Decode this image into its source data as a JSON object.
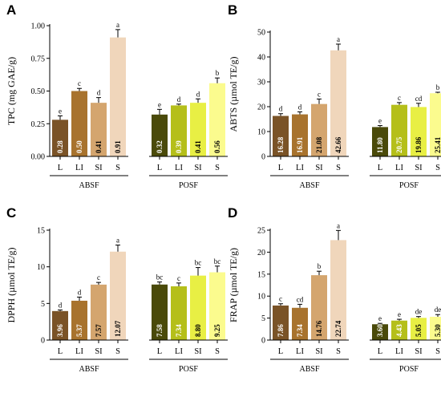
{
  "chart_data": [
    {
      "panel": "A",
      "type": "bar",
      "ylabel": "TPC (mg GAE/g)",
      "ylim": [
        0,
        1.0
      ],
      "yticks": [
        "0.00",
        "0.25",
        "0.50",
        "0.75",
        "1.00"
      ],
      "yticks_values": [
        0,
        0.25,
        0.5,
        0.75,
        1.0
      ],
      "groups": [
        {
          "name": "ABSF",
          "categories": [
            "L",
            "LI",
            "SI",
            "S"
          ],
          "values": [
            0.28,
            0.5,
            0.41,
            0.91
          ],
          "errors": [
            0.03,
            0.02,
            0.04,
            0.06
          ],
          "letters": [
            "e",
            "c",
            "d",
            "a"
          ],
          "labels": [
            "0.28",
            "0.50",
            "0.41",
            "0.91"
          ]
        },
        {
          "name": "POSF",
          "categories": [
            "L",
            "LI",
            "SI",
            "S"
          ],
          "values": [
            0.32,
            0.39,
            0.41,
            0.56
          ],
          "errors": [
            0.04,
            0.01,
            0.03,
            0.04
          ],
          "letters": [
            "e",
            "d",
            "d",
            "b"
          ],
          "labels": [
            "0.32",
            "0.39",
            "0.41",
            "0.56"
          ]
        }
      ]
    },
    {
      "panel": "B",
      "type": "bar",
      "ylabel": "ABTS (µmol TE/g)",
      "ylim": [
        0,
        50
      ],
      "yticks": [
        "0",
        "10",
        "20",
        "30",
        "40",
        "50"
      ],
      "yticks_values": [
        0,
        10,
        20,
        30,
        40,
        50
      ],
      "groups": [
        {
          "name": "ABSF",
          "categories": [
            "L",
            "LI",
            "SI",
            "S"
          ],
          "values": [
            16.28,
            16.91,
            21.08,
            42.66
          ],
          "errors": [
            0.9,
            1.0,
            2.0,
            2.5
          ],
          "letters": [
            "d",
            "d",
            "c",
            "a"
          ],
          "labels": [
            "16.28",
            "16.91",
            "21.08",
            "42.66"
          ]
        },
        {
          "name": "POSF",
          "categories": [
            "L",
            "LI",
            "SI",
            "S"
          ],
          "values": [
            11.8,
            20.75,
            19.86,
            25.41
          ],
          "errors": [
            0.6,
            0.9,
            1.5,
            0.4
          ],
          "letters": [
            "e",
            "c",
            "cd",
            "b"
          ],
          "labels": [
            "11.80",
            "20.75",
            "19.86",
            "25.41"
          ]
        }
      ]
    },
    {
      "panel": "C",
      "type": "bar",
      "ylabel": "DPPH (µmol TE/g)",
      "ylim": [
        0,
        15
      ],
      "yticks": [
        "0",
        "5",
        "10",
        "15"
      ],
      "yticks_values": [
        0,
        5,
        10,
        15
      ],
      "groups": [
        {
          "name": "ABSF",
          "categories": [
            "L",
            "LI",
            "SI",
            "S"
          ],
          "values": [
            3.96,
            5.37,
            7.57,
            12.07
          ],
          "errors": [
            0.15,
            0.5,
            0.3,
            0.9
          ],
          "letters": [
            "d",
            "d",
            "c",
            "a"
          ],
          "labels": [
            "3.96",
            "5.37",
            "7.57",
            "12.07"
          ]
        },
        {
          "name": "POSF",
          "categories": [
            "L",
            "LI",
            "SI",
            "S"
          ],
          "values": [
            7.58,
            7.34,
            8.8,
            9.25
          ],
          "errors": [
            0.35,
            0.45,
            1.1,
            0.85
          ],
          "letters": [
            "bc",
            "c",
            "bc",
            "bc"
          ],
          "labels": [
            "7.58",
            "7.34",
            "8.80",
            "9.25"
          ]
        }
      ]
    },
    {
      "panel": "D",
      "type": "bar",
      "ylabel": "FRAP (µmol TE/g)",
      "ylim": [
        0,
        25
      ],
      "yticks": [
        "0",
        "5",
        "10",
        "15",
        "20",
        "25"
      ],
      "yticks_values": [
        0,
        5,
        10,
        15,
        20,
        25
      ],
      "groups": [
        {
          "name": "ABSF",
          "categories": [
            "L",
            "LI",
            "SI",
            "S"
          ],
          "values": [
            7.86,
            7.34,
            14.76,
            22.74
          ],
          "errors": [
            0.4,
            0.8,
            0.9,
            2.2
          ],
          "letters": [
            "c",
            "cd",
            "b",
            "a"
          ],
          "labels": [
            "7.86",
            "7.34",
            "14.76",
            "22.74"
          ]
        },
        {
          "name": "POSF",
          "categories": [
            "L",
            "LI",
            "SI",
            "S"
          ],
          "values": [
            3.6,
            4.43,
            5.05,
            5.3
          ],
          "errors": [
            0.2,
            0.3,
            0.3,
            0.5
          ],
          "letters": [
            "e",
            "e",
            "de",
            "de"
          ],
          "labels": [
            "3.60",
            "4.43",
            "5.05",
            "5.30"
          ]
        }
      ]
    }
  ],
  "colors": {
    "ABSF": [
      "#7a5327",
      "#a8732e",
      "#d4a56e",
      "#f0d6bb"
    ],
    "POSF": [
      "#4a4a0a",
      "#b5bf1a",
      "#e8ef44",
      "#fbfb8e"
    ],
    "label_text_dark": "#ffffff",
    "label_text_light": "#000000",
    "axis": "#000000"
  }
}
